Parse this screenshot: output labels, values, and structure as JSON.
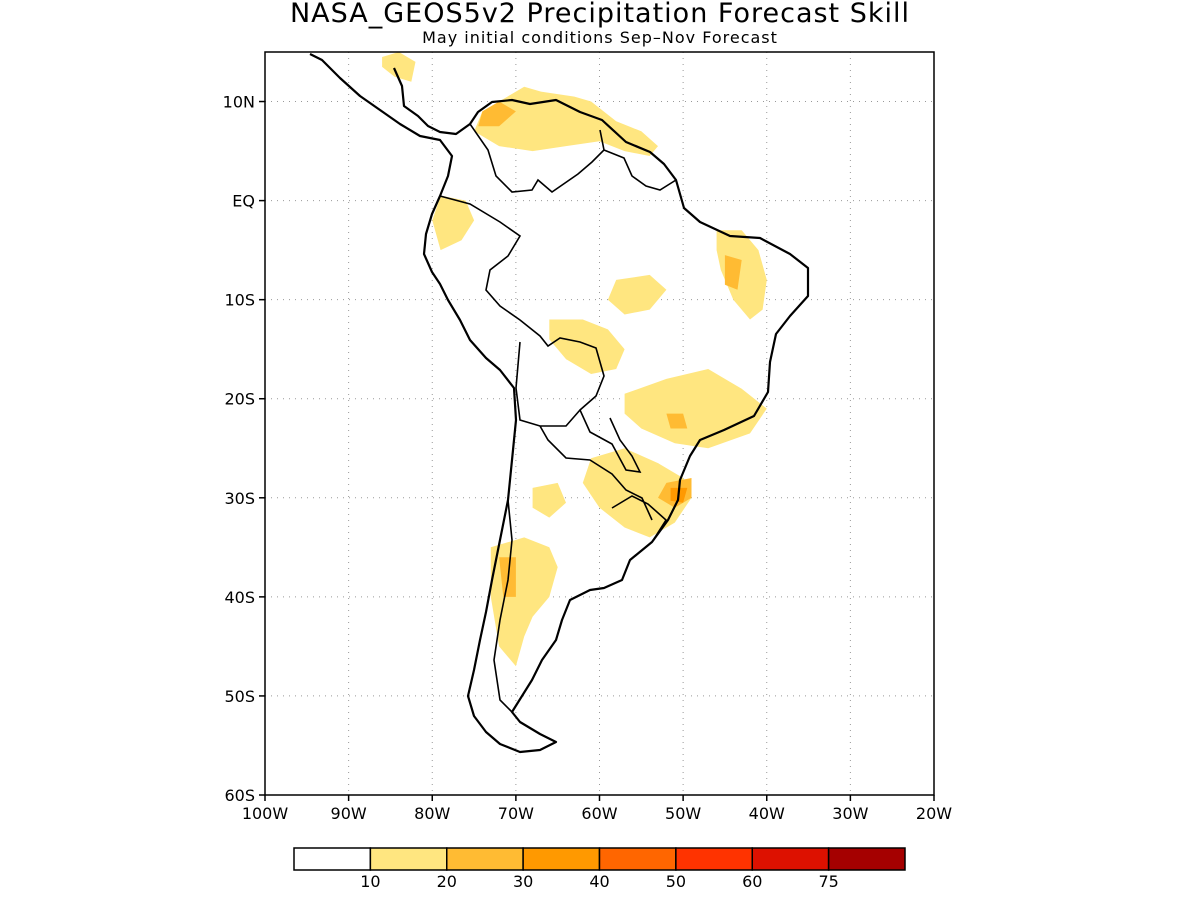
{
  "title": "NASA_GEOS5v2 Precipitation Forecast Skill",
  "subtitle": "May initial conditions  Sep–Nov Forecast",
  "map": {
    "lon_range": [
      -100,
      -20
    ],
    "lat_range": [
      -60,
      15
    ],
    "lat_ticks": [
      {
        "value": 10,
        "label": "10N"
      },
      {
        "value": 0,
        "label": "EQ"
      },
      {
        "value": -10,
        "label": "10S"
      },
      {
        "value": -20,
        "label": "20S"
      },
      {
        "value": -30,
        "label": "30S"
      },
      {
        "value": -40,
        "label": "40S"
      },
      {
        "value": -50,
        "label": "50S"
      },
      {
        "value": -60,
        "label": "60S"
      }
    ],
    "lon_ticks": [
      {
        "value": -100,
        "label": "100W"
      },
      {
        "value": -90,
        "label": "90W"
      },
      {
        "value": -80,
        "label": "80W"
      },
      {
        "value": -70,
        "label": "70W"
      },
      {
        "value": -60,
        "label": "60W"
      },
      {
        "value": -50,
        "label": "50W"
      },
      {
        "value": -40,
        "label": "40W"
      },
      {
        "value": -30,
        "label": "30W"
      },
      {
        "value": -20,
        "label": "20W"
      }
    ],
    "grid": true,
    "grid_style": "dotted"
  },
  "colorbar": {
    "colors": [
      "#ffffff",
      "#ffe680",
      "#ffbb33",
      "#ff9900",
      "#ff6600",
      "#ff3300",
      "#dd1100",
      "#a50000"
    ],
    "labels": [
      "10",
      "20",
      "30",
      "40",
      "50",
      "60",
      "75"
    ]
  },
  "skill_regions": [
    {
      "level": 1,
      "lon": [
        -74,
        -71,
        -69,
        -67,
        -63,
        -61,
        -58,
        -55,
        -53,
        -54,
        -57,
        -60,
        -64,
        -68,
        -72,
        -75
      ],
      "lat": [
        9,
        10.5,
        11.5,
        11,
        10.5,
        10,
        8,
        7,
        5.5,
        4.5,
        5,
        6,
        5.5,
        5,
        5.5,
        7
      ]
    },
    {
      "level": 1,
      "lon": [
        -86,
        -84,
        -82,
        -82.5,
        -84.5,
        -86
      ],
      "lat": [
        14.5,
        15,
        14,
        12,
        12.5,
        13.5
      ]
    },
    {
      "level": 1,
      "lon": [
        -79,
        -76,
        -75,
        -76.5,
        -79,
        -80
      ],
      "lat": [
        0.5,
        0,
        -2,
        -4,
        -5,
        -2
      ]
    },
    {
      "level": 1,
      "lon": [
        -46,
        -43,
        -41,
        -40,
        -40.5,
        -42,
        -44,
        -45.5,
        -46
      ],
      "lat": [
        -3,
        -3,
        -5,
        -8,
        -11,
        -12,
        -10,
        -7,
        -5
      ]
    },
    {
      "level": 1,
      "lon": [
        -58,
        -54,
        -52,
        -54,
        -57,
        -59
      ],
      "lat": [
        -8,
        -7.5,
        -9,
        -11,
        -11.5,
        -10
      ]
    },
    {
      "level": 1,
      "lon": [
        -66,
        -62,
        -59,
        -57,
        -58,
        -61,
        -64,
        -66
      ],
      "lat": [
        -12,
        -12,
        -13,
        -15,
        -17,
        -17.5,
        -16,
        -14
      ]
    },
    {
      "level": 1,
      "lon": [
        -57,
        -52,
        -47,
        -43,
        -40,
        -42,
        -47,
        -51,
        -55,
        -57
      ],
      "lat": [
        -19.5,
        -18,
        -17,
        -19,
        -21,
        -23.5,
        -25,
        -24.5,
        -23,
        -21.5
      ]
    },
    {
      "level": 1,
      "lon": [
        -61,
        -57,
        -53,
        -50,
        -49,
        -51,
        -54,
        -57,
        -60,
        -62
      ],
      "lat": [
        -26,
        -25,
        -26.5,
        -28,
        -30,
        -32.5,
        -34,
        -33,
        -31,
        -28.5
      ]
    },
    {
      "level": 1,
      "lon": [
        -73,
        -69,
        -66,
        -65,
        -66,
        -68,
        -69,
        -70,
        -72,
        -73
      ],
      "lat": [
        -35,
        -34,
        -35,
        -37,
        -40,
        -42,
        -44,
        -47,
        -45,
        -40
      ]
    },
    {
      "level": 1,
      "lon": [
        -68,
        -65,
        -64,
        -66,
        -68
      ],
      "lat": [
        -29,
        -28.5,
        -30.5,
        -32,
        -31
      ]
    },
    {
      "level": 2,
      "lon": [
        -74,
        -72,
        -70,
        -72,
        -74.5
      ],
      "lat": [
        9,
        10,
        9,
        7.5,
        7.5
      ]
    },
    {
      "level": 2,
      "lon": [
        -52,
        -49,
        -49,
        -51,
        -53
      ],
      "lat": [
        -28.5,
        -28,
        -30,
        -31,
        -30
      ]
    },
    {
      "level": 2,
      "lon": [
        -72,
        -70,
        -70,
        -71.5
      ],
      "lat": [
        -36,
        -36,
        -40,
        -40
      ]
    },
    {
      "level": 2,
      "lon": [
        -45,
        -43,
        -43.5,
        -45
      ],
      "lat": [
        -5.5,
        -6,
        -9,
        -8.5
      ]
    },
    {
      "level": 2,
      "lon": [
        -52,
        -50,
        -49.5,
        -51.5
      ],
      "lat": [
        -21.5,
        -21.5,
        -23,
        -23
      ]
    },
    {
      "level": 3,
      "lon": [
        -51.5,
        -49.5,
        -50,
        -51.5
      ],
      "lat": [
        -29,
        -29,
        -30.5,
        -30.3
      ]
    }
  ],
  "icon": "south-america-coastline"
}
